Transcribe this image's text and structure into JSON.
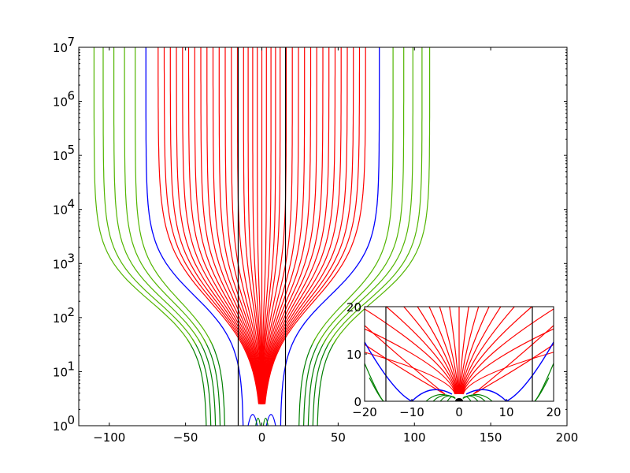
{
  "chart_data": [
    {
      "id": "main",
      "type": "line",
      "title": "",
      "xlabel": "",
      "ylabel": "",
      "xlim": [
        -120,
        200
      ],
      "ylim": [
        1,
        10000000
      ],
      "yscale": "log",
      "grid": false,
      "legend": "none",
      "x_ticks": [
        {
          "value": -100,
          "label": "−100"
        },
        {
          "value": -50,
          "label": "−50"
        },
        {
          "value": 0,
          "label": "0"
        },
        {
          "value": 50,
          "label": "50"
        },
        {
          "value": 100,
          "label": "100"
        },
        {
          "value": 150,
          "label": "150"
        },
        {
          "value": 200,
          "label": "200"
        }
      ],
      "y_ticks": [
        {
          "value": 1,
          "base": "10",
          "exp": "0"
        },
        {
          "value": 10,
          "base": "10",
          "exp": "1"
        },
        {
          "value": 100,
          "base": "10",
          "exp": "2"
        },
        {
          "value": 1000,
          "base": "10",
          "exp": "3"
        },
        {
          "value": 10000,
          "base": "10",
          "exp": "4"
        },
        {
          "value": 100000,
          "base": "10",
          "exp": "5"
        },
        {
          "value": 1000000,
          "base": "10",
          "exp": "6"
        },
        {
          "value": 10000000,
          "base": "10",
          "exp": "7"
        }
      ],
      "colors": {
        "red": "#ff0000",
        "blue": "#0000ff",
        "green": "#007f00",
        "lightgreen": "#52b500",
        "black": "#000000"
      },
      "vertical_lines_x": [
        -15.5,
        15.5
      ],
      "red_lines": {
        "bottom_x": [
          -12,
          -10.5,
          -9,
          -7.5,
          -6,
          -4.5,
          -3,
          -1.5,
          0,
          1.5,
          3,
          4.5,
          6,
          7.5,
          9,
          10.5,
          12
        ],
        "top_x": [
          -68,
          -64,
          -60,
          -56,
          -52,
          -48,
          -44,
          -40,
          -36,
          -32,
          -28,
          -24,
          -20,
          -16,
          -12,
          -9,
          -6,
          -3,
          0,
          3,
          6,
          9,
          12,
          16,
          20,
          24,
          28,
          32,
          36,
          40,
          44,
          48,
          52,
          56,
          60,
          64,
          68
        ]
      },
      "blue_lines": [
        {
          "bottom_x": -12,
          "top_x": -76
        },
        {
          "bottom_x": 12,
          "top_x": 77
        }
      ],
      "green_lines": [
        {
          "bottom_x": -36,
          "top_x": -110
        },
        {
          "bottom_x": -33,
          "top_x": -104
        },
        {
          "bottom_x": -30,
          "top_x": -97
        },
        {
          "bottom_x": -27,
          "top_x": -90
        },
        {
          "bottom_x": -24,
          "top_x": -83
        },
        {
          "bottom_x": 24,
          "top_x": 86
        },
        {
          "bottom_x": 27,
          "top_x": 93
        },
        {
          "bottom_x": 30,
          "top_x": 99
        },
        {
          "bottom_x": 33,
          "top_x": 105
        },
        {
          "bottom_x": 36,
          "top_x": 110
        }
      ]
    },
    {
      "id": "inset",
      "type": "line",
      "title": "",
      "xlabel": "",
      "ylabel": "",
      "xlim": [
        -20,
        20
      ],
      "ylim": [
        0,
        20
      ],
      "yscale": "linear",
      "grid": false,
      "legend": "none",
      "x_ticks": [
        {
          "value": -20,
          "label": "−20"
        },
        {
          "value": -10,
          "label": "−10"
        },
        {
          "value": 0,
          "label": "0"
        },
        {
          "value": 10,
          "label": "10"
        },
        {
          "value": 20,
          "label": "20"
        }
      ],
      "y_ticks": [
        {
          "value": 0,
          "label": "0"
        },
        {
          "value": 10,
          "label": "10"
        },
        {
          "value": 20,
          "label": "20"
        }
      ],
      "vertical_lines_x": [
        -15.5,
        15.5
      ]
    }
  ]
}
